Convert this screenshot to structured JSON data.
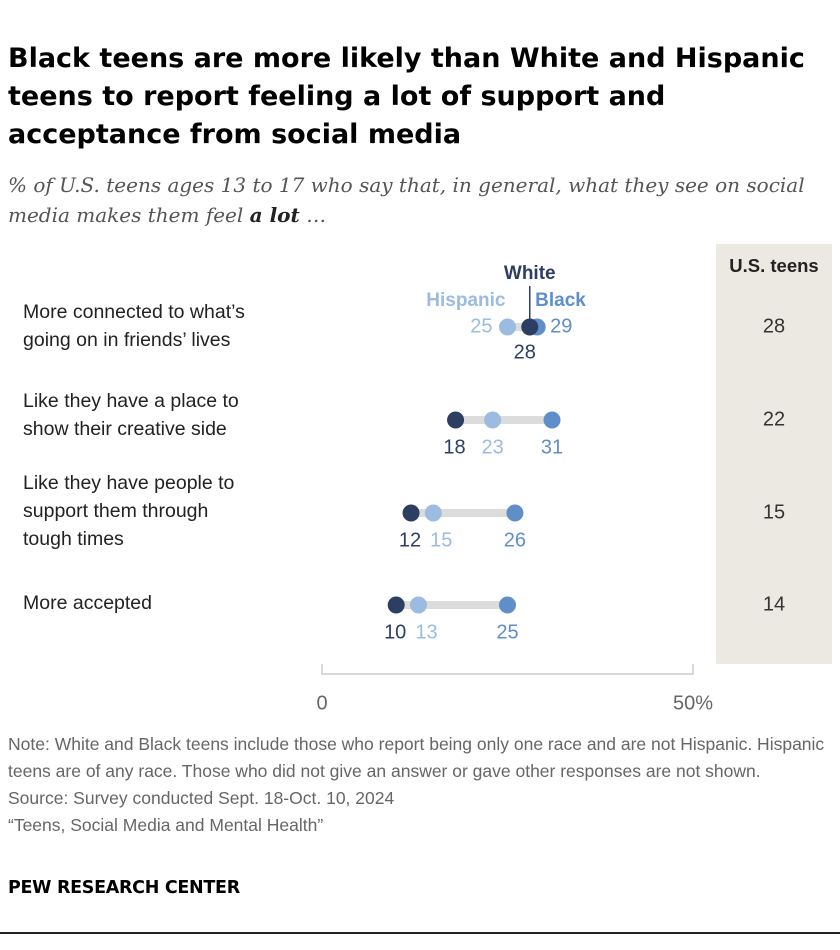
{
  "title": "Black teens are more likely than White and Hispanic teens to report feeling a lot of support and acceptance from social media",
  "subtitle_pre": "% of U.S. teens ages 13 to 17 who say that, in general, what they see on social media makes them feel ",
  "subtitle_bold": "a lot",
  "subtitle_post": " …",
  "chart_data": {
    "type": "dot",
    "categories": [
      [
        "More connected to what’s",
        "going on in friends’ lives"
      ],
      [
        "Like they have a place to",
        "show their creative side"
      ],
      [
        "Like they have people to",
        "support them through",
        "tough times"
      ],
      [
        "More accepted"
      ]
    ],
    "series": [
      {
        "name": "White",
        "color": "#2c3e62",
        "values": [
          28,
          18,
          12,
          10
        ]
      },
      {
        "name": "Hispanic",
        "color": "#9bbbe0",
        "values": [
          25,
          23,
          15,
          13
        ]
      },
      {
        "name": "Black",
        "color": "#5f8ec8",
        "values": [
          29,
          31,
          26,
          25
        ]
      }
    ],
    "total": {
      "name": "U.S. teens",
      "values": [
        28,
        22,
        15,
        14
      ]
    },
    "xlim": [
      0,
      50
    ],
    "xticks": [
      "0",
      "50%"
    ]
  },
  "note": "Note: White and Black teens include those who report being only one race and are not Hispanic. Hispanic teens are of any race. Those who did not give an answer or gave other responses are not shown.",
  "source": "Source: Survey conducted Sept. 18-Oct. 10, 2024",
  "report": "“Teens, Social Media and Mental Health”",
  "logo": "PEW RESEARCH CENTER"
}
